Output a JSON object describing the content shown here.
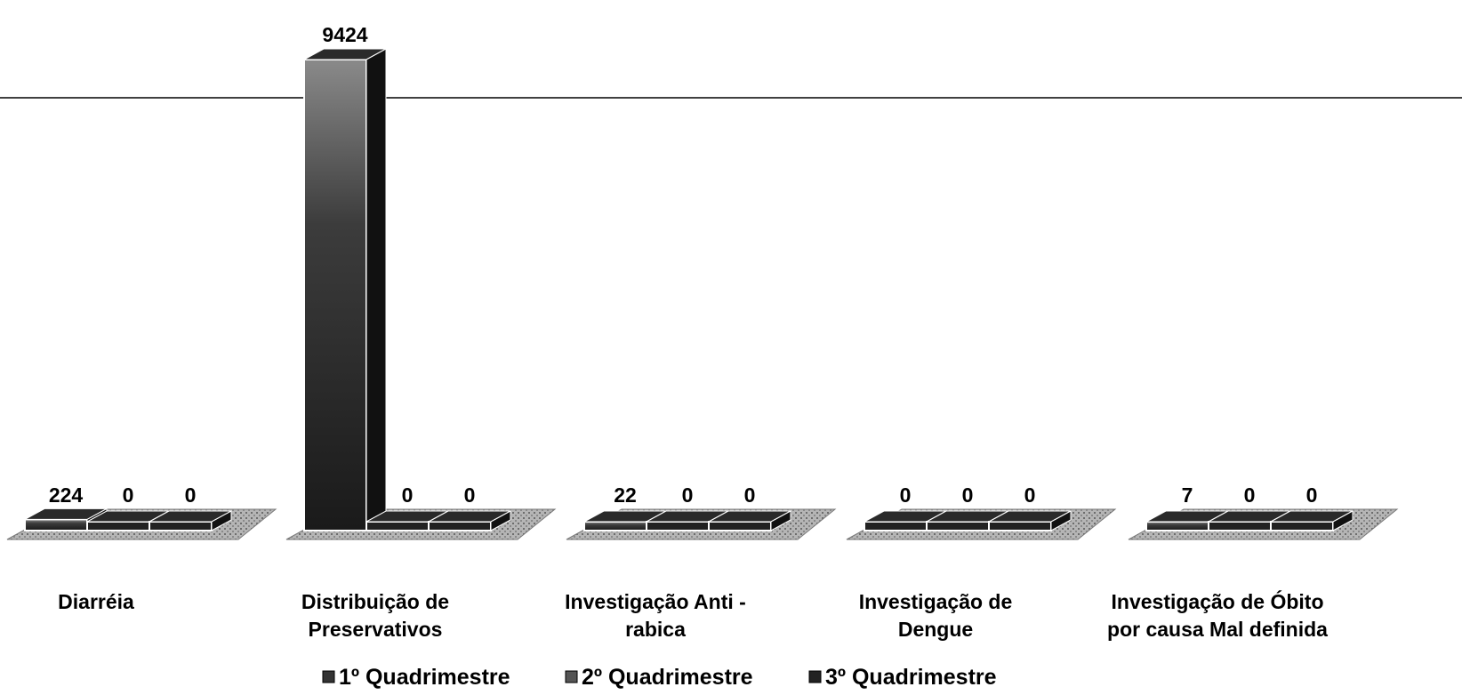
{
  "chart_data": {
    "type": "bar",
    "categories": [
      [
        "Diarréia"
      ],
      [
        "Distribuição de",
        "Preservativos"
      ],
      [
        "Investigação Anti -",
        "rabica"
      ],
      [
        "Investigação de",
        "Dengue"
      ],
      [
        "Investigação de Óbito",
        "por causa Mal definida"
      ]
    ],
    "series": [
      {
        "name": "1º Quadrimestre",
        "values": [
          224,
          9424,
          22,
          0,
          7
        ]
      },
      {
        "name": "2º Quadrimestre",
        "values": [
          0,
          0,
          0,
          0,
          0
        ]
      },
      {
        "name": "3º Quadrimestre",
        "values": [
          0,
          0,
          0,
          0,
          0
        ]
      }
    ],
    "title": "",
    "xlabel": "",
    "ylabel": "",
    "ylim": [
      0,
      9424
    ],
    "grid": false,
    "legend_position": "bottom",
    "colors": {
      "bar_front": "#5a5a5a",
      "bar_top": "#2a2a2a",
      "bar_side": "#111111",
      "floor": "#9a9a9a",
      "floor_slab": "#dcdcdc",
      "line": "#000000"
    }
  }
}
